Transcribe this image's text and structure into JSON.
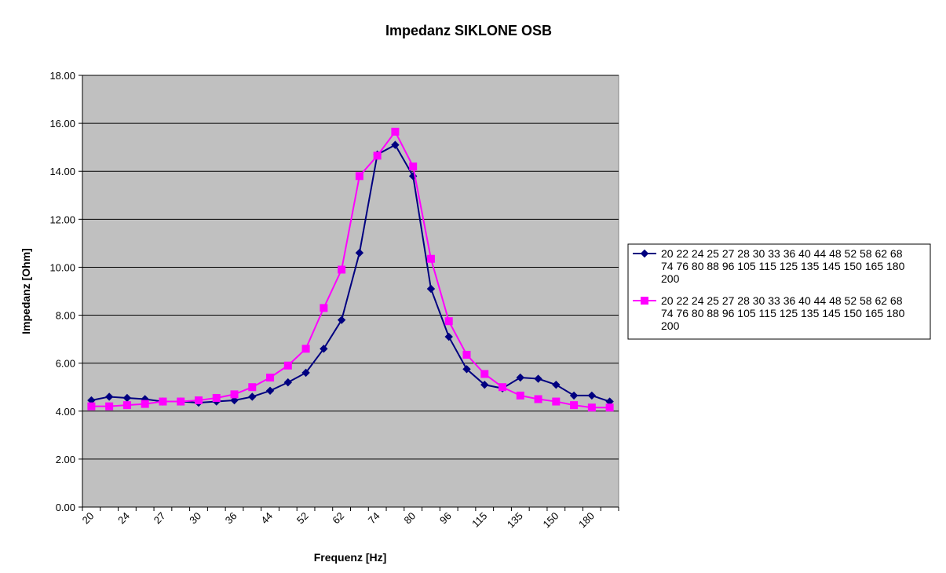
{
  "chart_data": {
    "type": "line",
    "title": "Impedanz SIKLONE OSB",
    "xlabel": "Frequenz [Hz]",
    "ylabel": "Impedanz [Ohm]",
    "ylim": [
      0,
      18
    ],
    "y_ticks": [
      "0.00",
      "2.00",
      "4.00",
      "6.00",
      "8.00",
      "10.00",
      "12.00",
      "14.00",
      "16.00",
      "18.00"
    ],
    "categories": [
      "20",
      "22",
      "24",
      "25",
      "27",
      "28",
      "30",
      "33",
      "36",
      "40",
      "44",
      "48",
      "52",
      "58",
      "62",
      "68",
      "74",
      "76",
      "80",
      "88",
      "96",
      "105",
      "115",
      "125",
      "135",
      "145",
      "150",
      "165",
      "180",
      "200"
    ],
    "x_tick_labels": [
      "20",
      "24",
      "27",
      "30",
      "36",
      "44",
      "52",
      "62",
      "74",
      "80",
      "96",
      "115",
      "135",
      "150",
      "180"
    ],
    "grid": true,
    "legend_position": "right",
    "plot_background": "#c0c0c0",
    "series": [
      {
        "name": "20 22 24 25 27 28 30 33 36 40 44 48 52 58 62 68 74 76 80 88 96 105 115 125 135 145 150 165 180 200",
        "color": "#000080",
        "marker": "diamond",
        "values": [
          4.45,
          4.6,
          4.55,
          4.5,
          4.4,
          4.4,
          4.35,
          4.4,
          4.45,
          4.6,
          4.85,
          5.2,
          5.6,
          6.6,
          7.8,
          10.6,
          14.7,
          15.1,
          13.8,
          9.1,
          7.1,
          5.75,
          5.1,
          4.95,
          5.4,
          5.35,
          5.1,
          4.65,
          4.65,
          4.4
        ]
      },
      {
        "name": "20 22 24 25 27 28 30 33 36 40 44 48 52 58 62 68 74 76 80 88 96 105 115 125 135 145 150 165 180 200",
        "color": "#ff00ff",
        "marker": "square",
        "values": [
          4.2,
          4.2,
          4.25,
          4.3,
          4.4,
          4.4,
          4.45,
          4.55,
          4.7,
          5.0,
          5.4,
          5.9,
          6.6,
          8.3,
          9.9,
          13.8,
          14.65,
          15.65,
          14.2,
          10.35,
          7.75,
          6.35,
          5.55,
          5.0,
          4.65,
          4.5,
          4.4,
          4.25,
          4.15,
          4.15
        ]
      }
    ]
  }
}
